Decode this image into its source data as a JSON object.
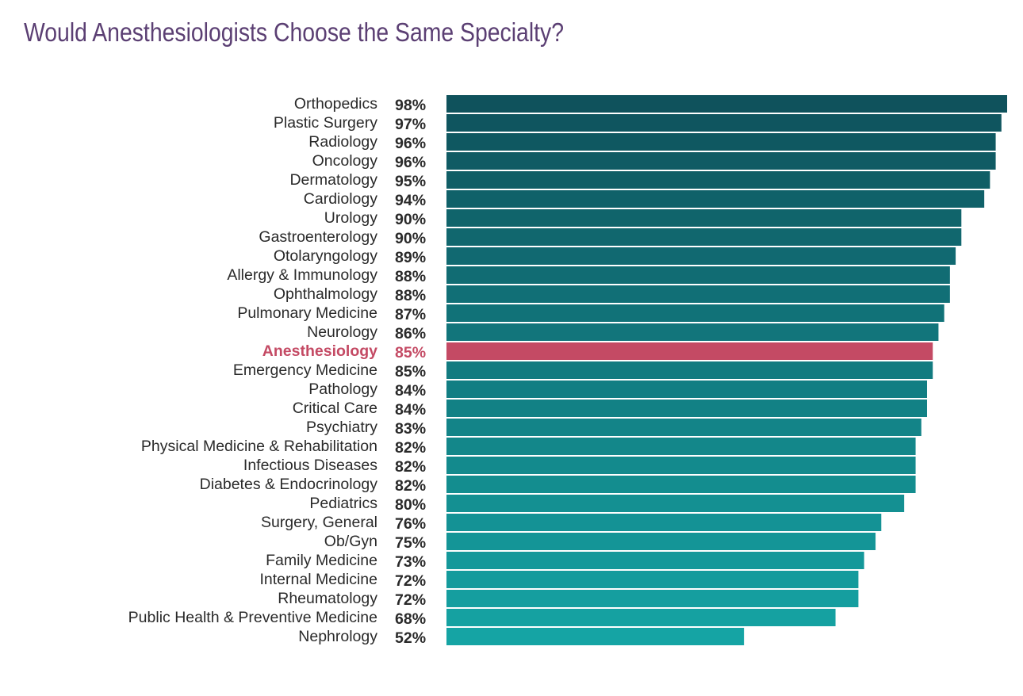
{
  "chart_data": {
    "type": "bar",
    "orientation": "horizontal",
    "title": "Would Anesthesiologists Choose the Same Specialty?",
    "categories": [
      "Orthopedics",
      "Plastic Surgery",
      "Radiology",
      "Oncology",
      "Dermatology",
      "Cardiology",
      "Urology",
      "Gastroenterology",
      "Otolaryngology",
      "Allergy & Immunology",
      "Ophthalmology",
      "Pulmonary Medicine",
      "Neurology",
      "Anesthesiology",
      "Emergency Medicine",
      "Pathology",
      "Critical Care",
      "Psychiatry",
      "Physical Medicine & Rehabilitation",
      "Infectious Diseases",
      "Diabetes & Endocrinology",
      "Pediatrics",
      "Surgery, General",
      "Ob/Gyn",
      "Family Medicine",
      "Internal Medicine",
      "Rheumatology",
      "Public Health & Preventive Medicine",
      "Nephrology"
    ],
    "values": [
      98,
      97,
      96,
      96,
      95,
      94,
      90,
      90,
      89,
      88,
      88,
      87,
      86,
      85,
      85,
      84,
      84,
      83,
      82,
      82,
      82,
      80,
      76,
      75,
      73,
      72,
      72,
      68,
      52
    ],
    "value_suffix": "%",
    "xlim": [
      0,
      98
    ],
    "grid": false,
    "highlight": "Anesthesiology",
    "colors": {
      "top": "#0f525c",
      "bottom": "#15a4a4",
      "highlight": "#c44a64",
      "title": "#5b3f73"
    }
  }
}
